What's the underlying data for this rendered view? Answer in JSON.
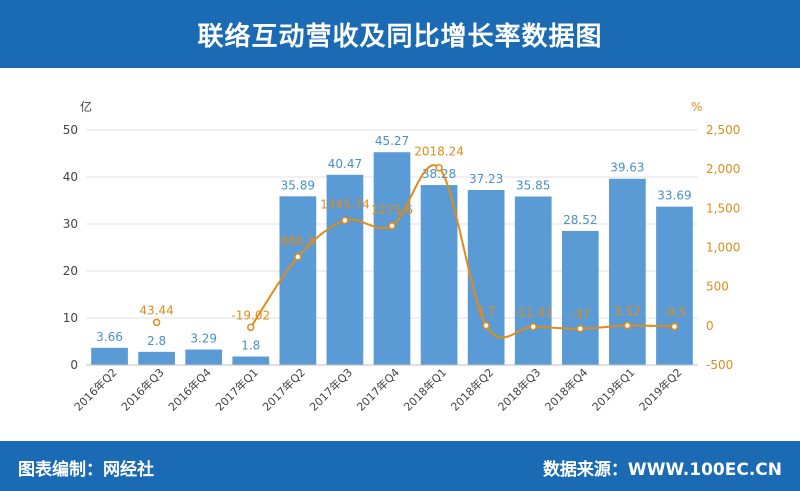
{
  "header": {
    "title": "联络互动营收及同比增长率数据图"
  },
  "footer": {
    "maker": "图表编制：网经社",
    "source": "数据来源：WWW.100EC.CN"
  },
  "colors": {
    "header_bg": "#1a6ab4",
    "bar": "#5b9bd5",
    "bar_label": "#4a90c8",
    "line": "#e08c1a",
    "axis_text": "#444444",
    "right_axis_text": "#e08c1a",
    "grid": "#e2e2e2"
  },
  "chart_data": {
    "type": "bar+line",
    "categories": [
      "2016年Q2",
      "2016年Q3",
      "2016年Q4",
      "2017年Q1",
      "2017年Q2",
      "2017年Q3",
      "2017年Q4",
      "2018年Q1",
      "2018年Q2",
      "2018年Q3",
      "2018年Q4",
      "2019年Q1",
      "2019年Q2"
    ],
    "series": [
      {
        "type": "bar",
        "axis": "left",
        "values": [
          3.66,
          2.8,
          3.29,
          1.8,
          35.89,
          40.47,
          45.27,
          38.28,
          37.23,
          35.85,
          28.52,
          39.63,
          33.69
        ],
        "labels": [
          "3.66",
          "2.8",
          "3.29",
          "1.8",
          "35.89",
          "40.47",
          "45.27",
          "38.28",
          "37.23",
          "35.85",
          "28.52",
          "39.63",
          "33.69"
        ]
      },
      {
        "type": "line",
        "axis": "right",
        "values": [
          null,
          43.44,
          null,
          -19.02,
          880.4,
          1345.74,
          1275.6,
          2018.24,
          3.7,
          -11.41,
          -37,
          3.52,
          -9.5
        ],
        "labels": [
          "",
          "43.44",
          "",
          "-19.02",
          "880.4",
          "1345.74",
          "1275.6",
          "2018.24",
          "3.7",
          "-11.41",
          "-37",
          "3.52",
          "-9.5"
        ]
      }
    ],
    "y_left": {
      "unit": "亿",
      "min": 0,
      "max": 50,
      "ticks": [
        0,
        10,
        20,
        30,
        40,
        50
      ],
      "tick_labels": [
        "0",
        "10",
        "20",
        "30",
        "40",
        "50"
      ]
    },
    "y_right": {
      "unit": "%",
      "min": -500,
      "max": 2500,
      "ticks": [
        -500,
        0,
        500,
        1000,
        1500,
        2000,
        2500
      ],
      "tick_labels": [
        "-500",
        "0",
        "500",
        "1,000",
        "1,500",
        "2,000",
        "2,500"
      ]
    },
    "grid": true,
    "legend": "none"
  }
}
